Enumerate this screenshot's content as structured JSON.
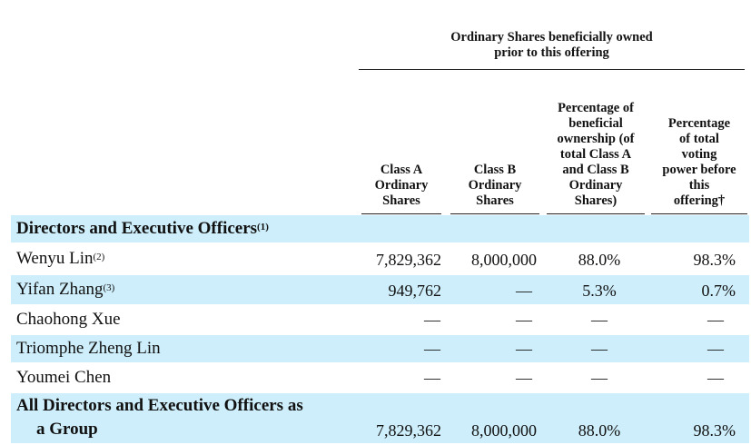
{
  "group_header": [
    "Ordinary Shares beneficially owned",
    "prior to this offering"
  ],
  "columns": [
    {
      "lines": [
        "Class A",
        "Ordinary",
        "Shares"
      ]
    },
    {
      "lines": [
        "Class B",
        "Ordinary",
        "Shares"
      ]
    },
    {
      "lines": [
        "Percentage of",
        "beneficial",
        "ownership (of",
        "total Class A",
        "and Class B",
        "Ordinary",
        "Shares)"
      ]
    },
    {
      "lines": [
        "Percentage",
        "of total",
        "voting",
        "power before",
        "this",
        "offering†"
      ]
    }
  ],
  "section": {
    "label": "Directors and Executive Officers",
    "note": "(1)"
  },
  "rows": [
    {
      "name": "Wenyu Lin",
      "note": "(2)",
      "class_a": "7,829,362",
      "class_b": "8,000,000",
      "pct_ownership": "88.0%",
      "pct_voting": "98.3%"
    },
    {
      "name": "Yifan Zhang",
      "note": "(3)",
      "class_a": "949,762",
      "class_b": "—",
      "pct_ownership": "5.3%",
      "pct_voting": "0.7%"
    },
    {
      "name": "Chaohong Xue",
      "note": "",
      "class_a": "—",
      "class_b": "—",
      "pct_ownership": "—",
      "pct_voting": "—"
    },
    {
      "name": "Triomphe Zheng Lin",
      "note": "",
      "class_a": "—",
      "class_b": "—",
      "pct_ownership": "—",
      "pct_voting": "—"
    },
    {
      "name": "Youmei Chen",
      "note": "",
      "class_a": "—",
      "class_b": "—",
      "pct_ownership": "—",
      "pct_voting": "—"
    }
  ],
  "total": {
    "label_line1": "All Directors and Executive Officers as",
    "label_line2": "a Group",
    "class_a": "7,829,362",
    "class_b": "8,000,000",
    "pct_ownership": "88.0%",
    "pct_voting": "98.3%"
  }
}
